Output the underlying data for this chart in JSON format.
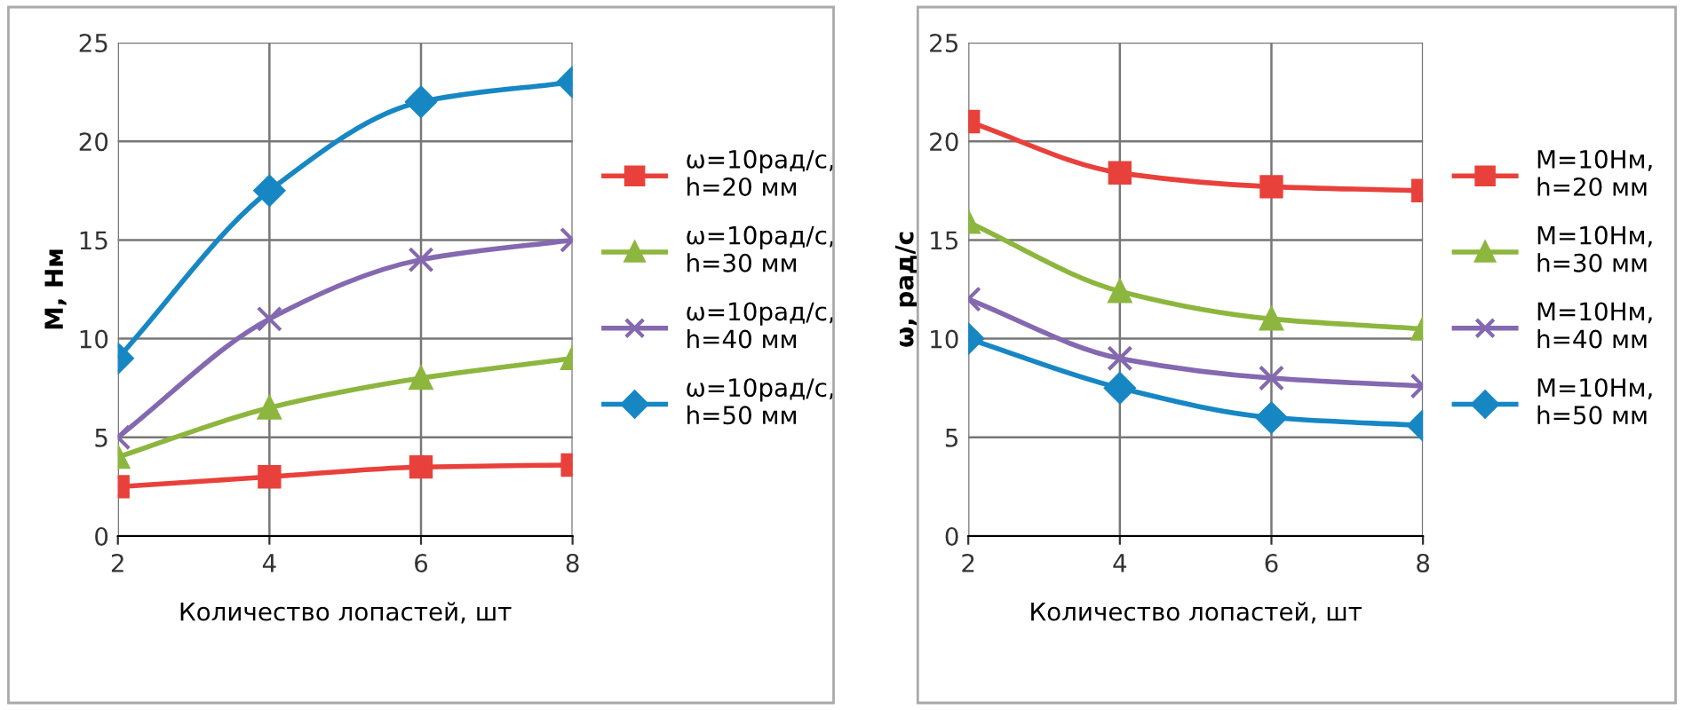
{
  "chart_data": [
    {
      "type": "line",
      "categories": [
        "2",
        "4",
        "6",
        "8"
      ],
      "xlabel": "Количество лопастей, шт",
      "ylabel": "М, Нм",
      "ylim": [
        0,
        25
      ],
      "yticks": [
        0,
        5,
        10,
        15,
        20,
        25
      ],
      "grid": true,
      "legend": "right",
      "line_style": "solid",
      "series": [
        {
          "name": "ω=10рад/с,\nh=20 мм",
          "color": "#e8413c",
          "marker": "square",
          "values": [
            2.5,
            3,
            3.5,
            3.6
          ]
        },
        {
          "name": "ω=10рад/с,\nh=30 мм",
          "color": "#8db63e",
          "marker": "triangle",
          "values": [
            4,
            6.5,
            8,
            9
          ]
        },
        {
          "name": "ω=10рад/с,\nh=40 мм",
          "color": "#8468b0",
          "marker": "cross",
          "values": [
            5,
            11,
            14,
            15
          ]
        },
        {
          "name": "ω=10рад/с,\nh=50 мм",
          "color": "#1787c4",
          "marker": "diamond",
          "values": [
            9,
            17.5,
            22,
            23
          ]
        }
      ]
    },
    {
      "type": "line",
      "categories": [
        "2",
        "4",
        "6",
        "8"
      ],
      "xlabel": "Количество лопастей, шт",
      "ylabel": "ω, рад/с",
      "ylim": [
        0,
        25
      ],
      "yticks": [
        0,
        5,
        10,
        15,
        20,
        25
      ],
      "grid": true,
      "legend": "right",
      "line_style": "solid",
      "series": [
        {
          "name": "М=10Нм,\nh=20 мм",
          "color": "#e8413c",
          "marker": "square",
          "values": [
            21,
            18.4,
            17.7,
            17.5
          ]
        },
        {
          "name": "М=10Нм,\nh=30 мм",
          "color": "#8db63e",
          "marker": "triangle",
          "values": [
            15.9,
            12.4,
            11,
            10.5
          ]
        },
        {
          "name": "М=10Нм,\nh=40 мм",
          "color": "#8468b0",
          "marker": "cross",
          "values": [
            12,
            9,
            8,
            7.6
          ]
        },
        {
          "name": "М=10Нм,\nh=50 мм",
          "color": "#1787c4",
          "marker": "diamond",
          "values": [
            10,
            7.5,
            6,
            5.6
          ]
        }
      ]
    }
  ]
}
